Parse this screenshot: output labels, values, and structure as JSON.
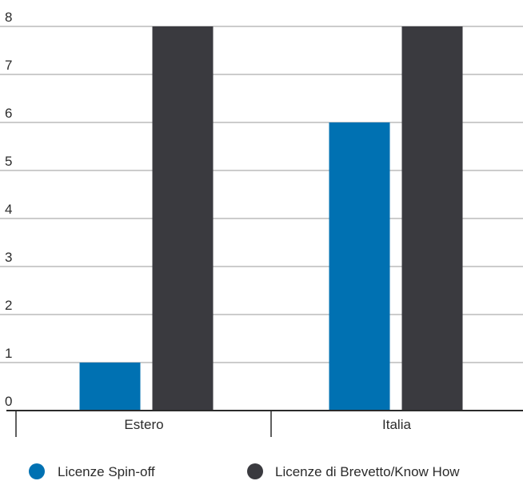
{
  "chart_data": {
    "type": "bar",
    "categories": [
      "Estero",
      "Italia"
    ],
    "series": [
      {
        "name": "Licenze Spin-off",
        "color": "#0071b2",
        "values": [
          1,
          6
        ]
      },
      {
        "name": "Licenze di Brevetto/Know How",
        "color": "#3a3a3f",
        "values": [
          8,
          8
        ]
      }
    ],
    "ylim": [
      0,
      8
    ],
    "yticks": [
      0,
      1,
      2,
      3,
      4,
      5,
      6,
      7,
      8
    ],
    "grid": true,
    "legend_position": "bottom",
    "title": "",
    "xlabel": "",
    "ylabel": ""
  }
}
